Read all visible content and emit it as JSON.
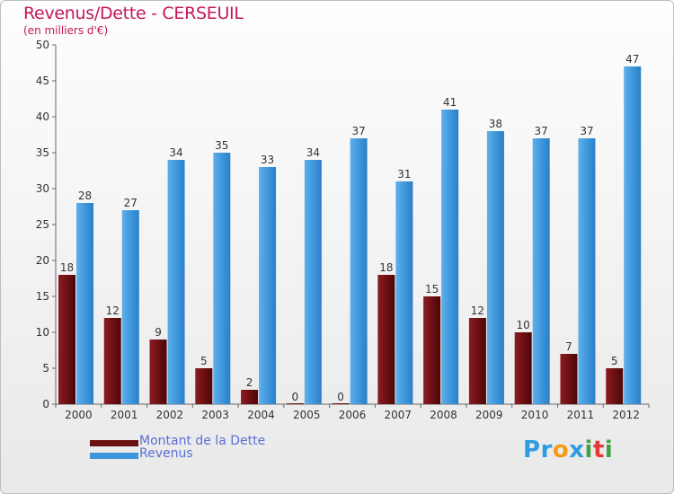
{
  "title": "Revenus/Dette - CERSEUIL",
  "subtitle": "(en milliers d'€)",
  "legend": [
    {
      "label": "Montant de la Dette",
      "color": "#6b0f12"
    },
    {
      "label": "Revenus",
      "color": "#3d95da"
    }
  ],
  "logo": {
    "text": "Proxiti",
    "letters": [
      {
        "ch": "P",
        "color": "#2f9be0"
      },
      {
        "ch": "r",
        "color": "#2f9be0"
      },
      {
        "ch": "o",
        "color": "#f39c12"
      },
      {
        "ch": "x",
        "color": "#2f9be0"
      },
      {
        "ch": "i",
        "color": "#43a047"
      },
      {
        "ch": "t",
        "color": "#e53935"
      },
      {
        "ch": "i",
        "color": "#43a047"
      }
    ]
  },
  "chart_data": {
    "type": "bar",
    "categories": [
      "2000",
      "2001",
      "2002",
      "2003",
      "2004",
      "2005",
      "2006",
      "2007",
      "2008",
      "2009",
      "2010",
      "2011",
      "2012"
    ],
    "series": [
      {
        "name": "Montant de la Dette",
        "values": [
          18,
          12,
          9,
          5,
          2,
          0,
          0,
          18,
          15,
          12,
          10,
          7,
          5
        ],
        "color": "#6b0f12"
      },
      {
        "name": "Revenus",
        "values": [
          28,
          27,
          34,
          35,
          33,
          34,
          37,
          31,
          41,
          38,
          37,
          37,
          47
        ],
        "color": "#3d95da"
      }
    ],
    "y_ticks": [
      0,
      5,
      10,
      15,
      20,
      25,
      30,
      35,
      40,
      45,
      50
    ],
    "ylim": [
      0,
      50
    ],
    "grid": false,
    "data_labels": true,
    "legend_position": "bottom-left"
  }
}
